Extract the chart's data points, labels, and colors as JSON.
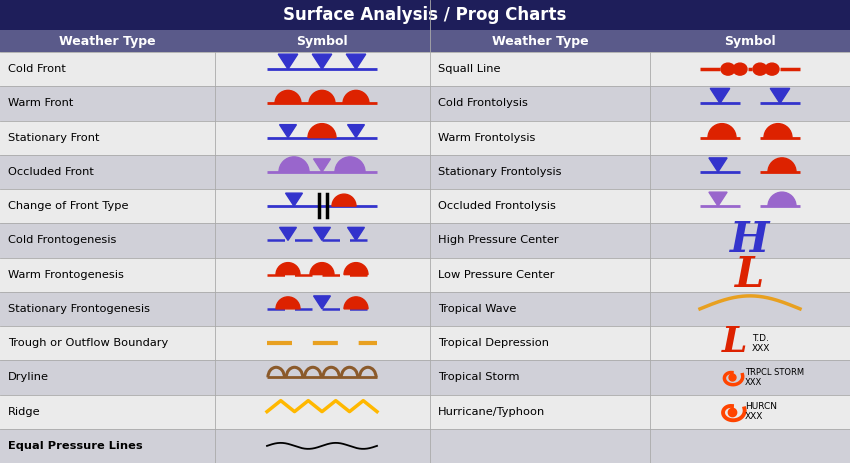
{
  "title": "Surface Analysis / Prog Charts",
  "title_bg": "#1e1e5a",
  "header_bg": "#5a5a8a",
  "row_bg_light": "#ebebeb",
  "row_bg_dark": "#d0d0d8",
  "col_divider": "#aaaaaa",
  "blue": "#3333cc",
  "red": "#dd2200",
  "purple": "#9966cc",
  "orange_dash": "#e8a020",
  "brown": "#8B5A2B",
  "gold": "#FFB800",
  "orange_storm": "#ff4400",
  "left_rows": [
    "Cold Front",
    "Warm Front",
    "Stationary Front",
    "Occluded Front",
    "Change of Front Type",
    "Cold Frontogenesis",
    "Warm Frontogenesis",
    "Stationary Frontogenesis",
    "Trough or Outflow Boundary",
    "Dryline",
    "Ridge",
    "Equal Pressure Lines"
  ],
  "right_rows": [
    "Squall Line",
    "Cold Frontolysis",
    "Warm Frontolysis",
    "Stationary Frontolysis",
    "Occluded Frontolysis",
    "High Pressure Center",
    "Low Pressure Center",
    "Tropical Wave",
    "Tropical Depression",
    "Tropical Storm",
    "Hurricane/Typhoon",
    ""
  ]
}
